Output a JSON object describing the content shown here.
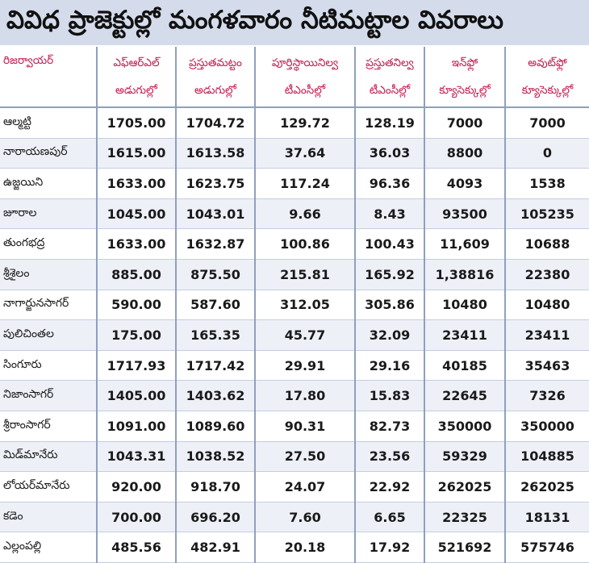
{
  "title": "వివిధ ప్రాజెక్టుల్లో మంగళవారం నీటిమట్టాల వివరాలు",
  "headers": [
    "రిజర్వాయర్",
    "ఎఫ్‌ఆర్‌ఎల్ అడుగుల్లో",
    "ప్రస్తుతమట్టం అడుగుల్లో",
    "పూర్తిస్థాయినిల్వ టీఎంసీల్లో",
    "ప్రస్తుతనిల్వ టీఎంసీల్లో",
    "ఇన్‌ఫ్లో క్యూసెక్కుల్లో",
    "అవుట్‌ఫ్లో క్యూసెక్కుల్లో"
  ],
  "rows": [
    [
      "ఆల్మట్టి",
      "1705.00",
      "1704.72",
      "129.72",
      "128.19",
      "7000",
      "7000"
    ],
    [
      "నారాయణపుర్",
      "1615.00",
      "1613.58",
      "37.64",
      "36.03",
      "8800",
      "0"
    ],
    [
      "ఉజ్జయిని",
      "1633.00",
      "1623.75",
      "117.24",
      "96.36",
      "4093",
      "1538"
    ],
    [
      "జూరాల",
      "1045.00",
      "1043.01",
      "9.66",
      "8.43",
      "93500",
      "105235"
    ],
    [
      "తుంగభద్ర",
      "1633.00",
      "1632.87",
      "100.86",
      "100.43",
      "11,609",
      "10688"
    ],
    [
      "శ్రీశైలం",
      "885.00",
      "875.50",
      "215.81",
      "165.92",
      "1,38816",
      "22380"
    ],
    [
      "నాగార్జునసాగర్",
      "590.00",
      "587.60",
      "312.05",
      "305.86",
      "10480",
      "10480"
    ],
    [
      "పులిచింతల",
      "175.00",
      "165.35",
      "45.77",
      "32.09",
      "23411",
      "23411"
    ],
    [
      "సింగూరు",
      "1717.93",
      "1717.42",
      "29.91",
      "29.16",
      "40185",
      "35463"
    ],
    [
      "నిజాంసాగర్",
      "1405.00",
      "1403.62",
      "17.80",
      "15.83",
      "22645",
      "7326"
    ],
    [
      "శ్రీరాంసాగర్",
      "1091.00",
      "1089.60",
      "90.31",
      "82.73",
      "350000",
      "350000"
    ],
    [
      "మిడ్‌మానేరు",
      "1043.31",
      "1038.52",
      "27.50",
      "23.56",
      "59329",
      "104885"
    ],
    [
      "లోయర్‌మానేరు",
      "920.00",
      "918.70",
      "24.07",
      "22.92",
      "262025",
      "262025"
    ],
    [
      "కడెం",
      "700.00",
      "696.20",
      "7.60",
      "6.65",
      "22325",
      "18131"
    ],
    [
      "ఎల్లంపల్లి",
      "485.56",
      "482.91",
      "20.18",
      "17.92",
      "521692",
      "575746"
    ]
  ]
}
